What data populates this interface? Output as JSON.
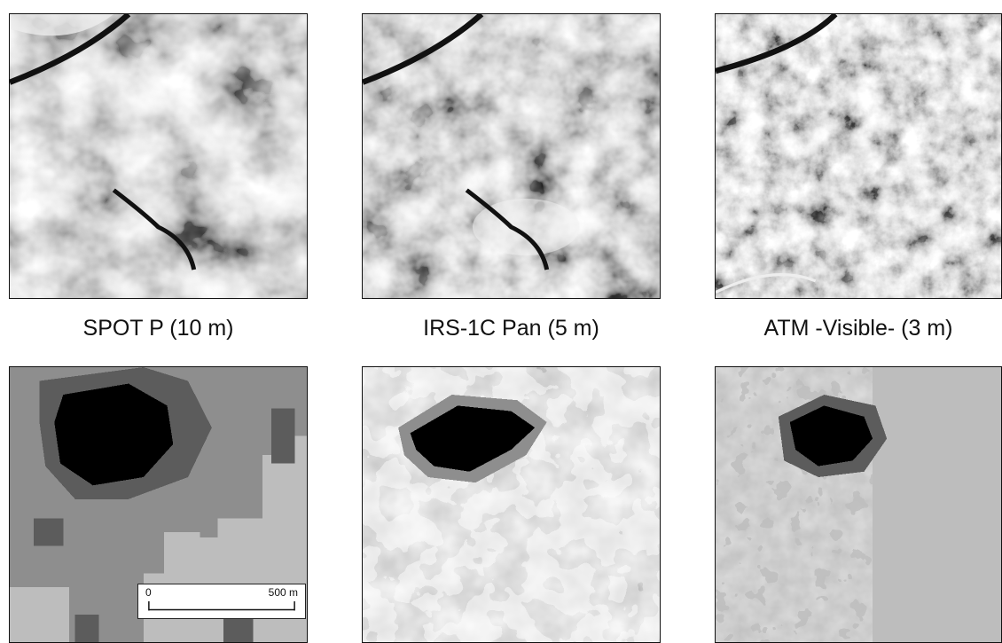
{
  "captions": [
    "SPOT P (10 m)",
    "IRS-1C Pan (5 m)",
    "ATM -Visible- (3 m)"
  ],
  "scale_bar": {
    "start_label": "0",
    "end_label": "500 m"
  }
}
